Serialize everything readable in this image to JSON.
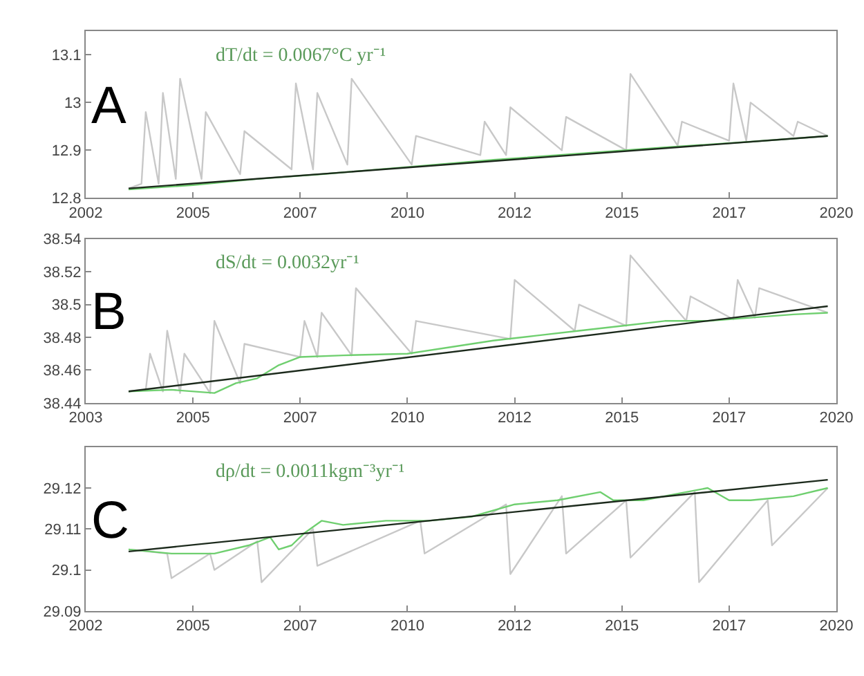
{
  "chart_data": [
    {
      "type": "line",
      "xlim": [
        2002.5,
        2020
      ],
      "xticks": [
        {
          "value": 2002.5,
          "label": "2002"
        },
        2005,
        {
          "value": 2007.5,
          "label": "2007"
        },
        2010,
        {
          "value": 2012.5,
          "label": "2012"
        },
        2015,
        {
          "value": 2017.5,
          "label": "2017"
        },
        2020
      ],
      "ylim": [
        12.8,
        13.15
      ],
      "yticks": [
        12.8,
        12.9,
        13,
        13.1
      ],
      "annotations": [
        "A",
        "dT/dt = 0.0067°C yr⁻¹"
      ],
      "series": [
        {
          "color": "#c8c8c8",
          "x": [
            2003.5,
            2003.8,
            2003.9,
            2004.2,
            2004.3,
            2004.6,
            2004.7,
            2005.2,
            2005.3,
            2006.1,
            2006.2,
            2007.3,
            2007.4,
            2007.8,
            2007.9,
            2008.6,
            2008.7,
            2010.1,
            2010.2,
            2011.7,
            2011.8,
            2012.3,
            2012.4,
            2013.6,
            2013.7,
            2015.1,
            2015.2,
            2016.3,
            2016.4,
            2017.5,
            2017.6,
            2017.9,
            2018,
            2019,
            2019.1,
            2019.8
          ],
          "values": [
            12.82,
            12.83,
            12.98,
            12.83,
            13.02,
            12.84,
            13.05,
            12.84,
            12.98,
            12.85,
            12.94,
            12.86,
            13.04,
            12.86,
            13.02,
            12.87,
            13.05,
            12.87,
            12.93,
            12.89,
            12.96,
            12.89,
            12.99,
            12.9,
            12.97,
            12.9,
            13.06,
            12.91,
            12.96,
            12.92,
            13.04,
            12.92,
            13.0,
            12.93,
            12.96,
            12.93
          ]
        },
        {
          "color": "#6fcf6f",
          "x": [
            2003.5,
            2005,
            2006.5,
            2008,
            2010,
            2012,
            2014,
            2016,
            2018,
            2019.8
          ],
          "values": [
            12.818,
            12.827,
            12.84,
            12.85,
            12.865,
            12.88,
            12.893,
            12.906,
            12.918,
            12.93
          ]
        },
        {
          "color": "#1c2a1c",
          "x": [
            2003.5,
            2019.8
          ],
          "values": [
            12.82,
            12.93
          ]
        }
      ]
    },
    {
      "type": "line",
      "xlim": [
        2002.5,
        2020
      ],
      "xticks": [
        {
          "value": 2002.5,
          "label": "2003"
        },
        2005,
        {
          "value": 2007.5,
          "label": "2007"
        },
        2010,
        {
          "value": 2012.5,
          "label": "2012"
        },
        2015,
        {
          "value": 2017.5,
          "label": "2017"
        },
        2020
      ],
      "ylim": [
        38.44,
        38.54
      ],
      "yticks": [
        38.44,
        38.46,
        38.48,
        38.5,
        38.52,
        38.54
      ],
      "annotations": [
        "B",
        "dS/dt = 0.0032yr⁻¹"
      ],
      "series": [
        {
          "color": "#c8c8c8",
          "x": [
            2003.5,
            2003.9,
            2004,
            2004.3,
            2004.4,
            2004.7,
            2004.8,
            2005.4,
            2005.5,
            2006.1,
            2006.2,
            2007.5,
            2007.6,
            2007.9,
            2008,
            2008.7,
            2008.8,
            2010.1,
            2010.2,
            2012.4,
            2012.5,
            2013.9,
            2014,
            2015.1,
            2015.2,
            2016.5,
            2016.6,
            2017.6,
            2017.7,
            2018.1,
            2018.2,
            2019.8
          ],
          "values": [
            38.447,
            38.448,
            38.47,
            38.447,
            38.484,
            38.446,
            38.47,
            38.446,
            38.49,
            38.452,
            38.476,
            38.468,
            38.49,
            38.468,
            38.495,
            38.469,
            38.51,
            38.47,
            38.49,
            38.479,
            38.515,
            38.484,
            38.5,
            38.487,
            38.53,
            38.49,
            38.505,
            38.491,
            38.515,
            38.492,
            38.51,
            38.495
          ]
        },
        {
          "color": "#6fcf6f",
          "x": [
            2003.5,
            2004.5,
            2005.5,
            2006,
            2006.5,
            2007,
            2007.5,
            2008.5,
            2010,
            2011,
            2012,
            2013,
            2014,
            2015,
            2016,
            2017,
            2018,
            2019,
            2019.8
          ],
          "values": [
            38.447,
            38.448,
            38.446,
            38.452,
            38.455,
            38.463,
            38.468,
            38.469,
            38.47,
            38.474,
            38.478,
            38.481,
            38.484,
            38.487,
            38.49,
            38.49,
            38.492,
            38.494,
            38.495
          ]
        },
        {
          "color": "#1c2a1c",
          "x": [
            2003.5,
            2019.8
          ],
          "values": [
            38.447,
            38.499
          ]
        }
      ]
    },
    {
      "type": "line",
      "xlim": [
        2002.5,
        2020
      ],
      "xticks": [
        {
          "value": 2002.5,
          "label": "2002"
        },
        2005,
        {
          "value": 2007.5,
          "label": "2007"
        },
        2010,
        {
          "value": 2012.5,
          "label": "2012"
        },
        2015,
        {
          "value": 2017.5,
          "label": "2017"
        },
        2020
      ],
      "ylim": [
        29.09,
        29.13
      ],
      "yticks": [
        29.09,
        29.1,
        29.11,
        29.12
      ],
      "annotations": [
        "C",
        "dρ/dt = 0.0011kgm⁻³yr⁻¹"
      ],
      "series": [
        {
          "color": "#c8c8c8",
          "x": [
            2003.5,
            2004.4,
            2004.5,
            2005.4,
            2005.5,
            2006.5,
            2006.6,
            2007.8,
            2007.9,
            2010.3,
            2010.4,
            2012.3,
            2012.4,
            2013.6,
            2013.7,
            2015.1,
            2015.2,
            2016.7,
            2016.8,
            2018.4,
            2018.5,
            2019.8
          ],
          "values": [
            29.105,
            29.104,
            29.098,
            29.104,
            29.1,
            29.107,
            29.097,
            29.11,
            29.101,
            29.112,
            29.104,
            29.116,
            29.099,
            29.118,
            29.104,
            29.117,
            29.103,
            29.119,
            29.097,
            29.117,
            29.106,
            29.12
          ]
        },
        {
          "color": "#6fcf6f",
          "x": [
            2003.5,
            2004.5,
            2005.5,
            2006.3,
            2006.8,
            2007,
            2007.3,
            2007.6,
            2008,
            2008.5,
            2009.5,
            2010.5,
            2011.5,
            2012.5,
            2013.5,
            2014.5,
            2014.8,
            2015.5,
            2016.5,
            2017,
            2017.5,
            2018,
            2019,
            2019.8
          ],
          "values": [
            29.105,
            29.104,
            29.104,
            29.106,
            29.108,
            29.105,
            29.106,
            29.109,
            29.112,
            29.111,
            29.112,
            29.112,
            29.113,
            29.116,
            29.117,
            29.119,
            29.117,
            29.117,
            29.119,
            29.12,
            29.117,
            29.117,
            29.118,
            29.12
          ]
        },
        {
          "color": "#1c2a1c",
          "x": [
            2003.5,
            2019.8
          ],
          "values": [
            29.1045,
            29.122
          ]
        }
      ]
    }
  ]
}
